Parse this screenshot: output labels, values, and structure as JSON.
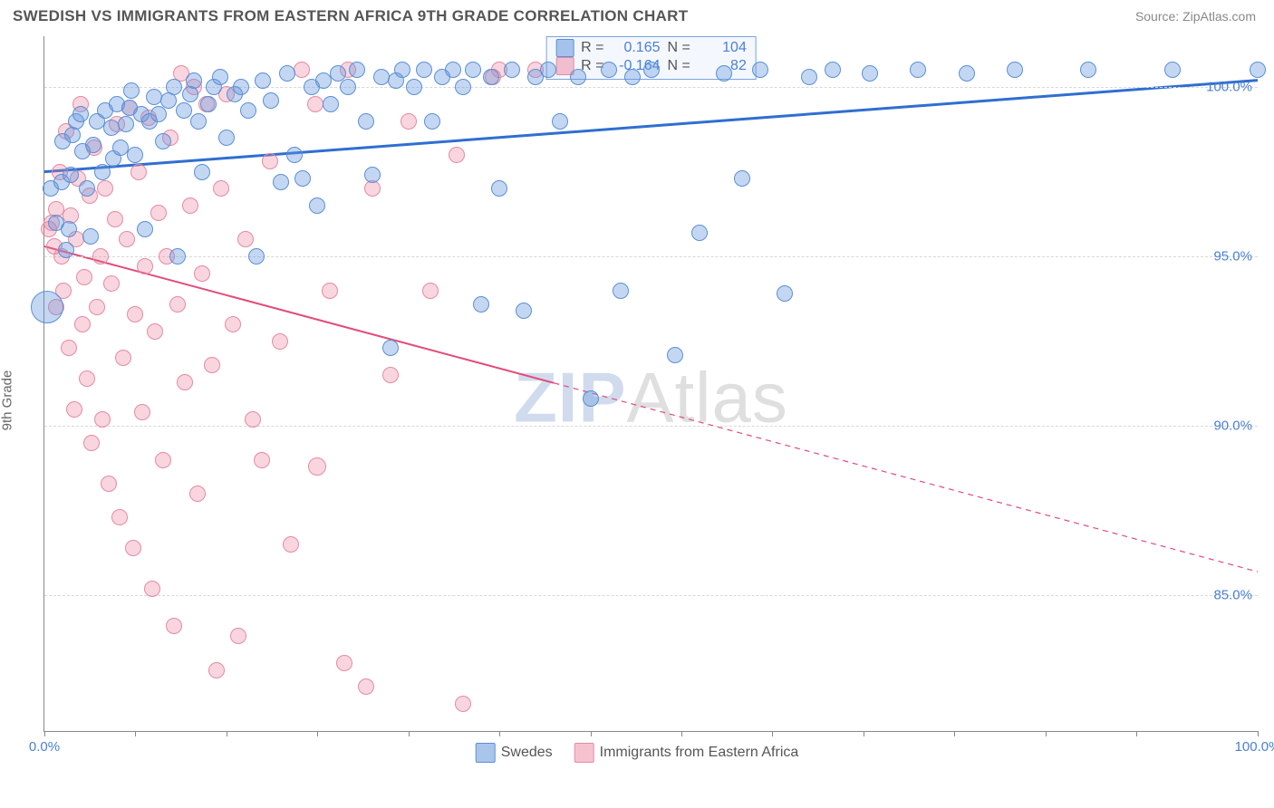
{
  "header": {
    "title": "SWEDISH VS IMMIGRANTS FROM EASTERN AFRICA 9TH GRADE CORRELATION CHART",
    "source": "Source: ZipAtlas.com"
  },
  "ylabel": "9th Grade",
  "watermark": {
    "part1": "ZIP",
    "part2": "Atlas"
  },
  "axes": {
    "xlim": [
      0,
      100
    ],
    "ylim": [
      81,
      101.5
    ],
    "xticks": [
      0,
      7.5,
      15,
      22.5,
      30,
      37.5,
      45,
      52.5,
      60,
      67.5,
      75,
      82.5,
      90,
      100
    ],
    "xtick_labels": {
      "0": "0.0%",
      "100": "100.0%"
    },
    "yticks": [
      85,
      90,
      95,
      100
    ],
    "ytick_labels": {
      "85": "85.0%",
      "90": "90.0%",
      "95": "95.0%",
      "100": "100.0%"
    },
    "grid_color": "#d8d8d8",
    "axis_color": "#888888",
    "tick_label_color": "#4a7fd6"
  },
  "series": {
    "swedes": {
      "label": "Swedes",
      "color_fill": "rgba(100,150,220,0.38)",
      "color_stroke": "#5b8fd6",
      "trend_color": "#2f6fd0",
      "trend_width": 3,
      "trend": {
        "x1": 0,
        "y1": 97.5,
        "x2": 100,
        "y2": 100.2,
        "dash_after_x": null
      },
      "stats": {
        "R": "0.165",
        "N": "104"
      },
      "points": [
        [
          0.5,
          97.0,
          9
        ],
        [
          0.2,
          93.5,
          18
        ],
        [
          1.0,
          96.0,
          9
        ],
        [
          1.4,
          97.2,
          9
        ],
        [
          1.5,
          98.4,
          9
        ],
        [
          1.8,
          95.2,
          9
        ],
        [
          2.0,
          95.8,
          9
        ],
        [
          2.2,
          97.4,
          9
        ],
        [
          2.3,
          98.6,
          9
        ],
        [
          2.6,
          99.0,
          9
        ],
        [
          3.0,
          99.2,
          9
        ],
        [
          3.1,
          98.1,
          9
        ],
        [
          3.5,
          97.0,
          9
        ],
        [
          3.8,
          95.6,
          9
        ],
        [
          4.0,
          98.3,
          9
        ],
        [
          4.3,
          99.0,
          9
        ],
        [
          4.8,
          97.5,
          9
        ],
        [
          5.0,
          99.3,
          9
        ],
        [
          5.5,
          98.8,
          9
        ],
        [
          5.7,
          97.9,
          9
        ],
        [
          6.0,
          99.5,
          9
        ],
        [
          6.3,
          98.2,
          9
        ],
        [
          6.7,
          98.9,
          9
        ],
        [
          7.0,
          99.4,
          9
        ],
        [
          7.2,
          99.9,
          9
        ],
        [
          7.5,
          98.0,
          9
        ],
        [
          8.0,
          99.2,
          9
        ],
        [
          8.3,
          95.8,
          9
        ],
        [
          8.7,
          99.0,
          9
        ],
        [
          9.0,
          99.7,
          9
        ],
        [
          9.4,
          99.2,
          9
        ],
        [
          9.8,
          98.4,
          9
        ],
        [
          10.2,
          99.6,
          9
        ],
        [
          10.7,
          100.0,
          9
        ],
        [
          11.0,
          95.0,
          9
        ],
        [
          11.5,
          99.3,
          9
        ],
        [
          12.0,
          99.8,
          9
        ],
        [
          12.3,
          100.2,
          9
        ],
        [
          12.7,
          99.0,
          9
        ],
        [
          13.0,
          97.5,
          9
        ],
        [
          13.5,
          99.5,
          9
        ],
        [
          14.0,
          100.0,
          9
        ],
        [
          14.5,
          100.3,
          9
        ],
        [
          15.0,
          98.5,
          9
        ],
        [
          15.7,
          99.8,
          9
        ],
        [
          16.2,
          100.0,
          9
        ],
        [
          16.8,
          99.3,
          9
        ],
        [
          17.5,
          95.0,
          9
        ],
        [
          18.0,
          100.2,
          9
        ],
        [
          18.7,
          99.6,
          9
        ],
        [
          19.5,
          97.2,
          9
        ],
        [
          20.0,
          100.4,
          9
        ],
        [
          20.6,
          98.0,
          9
        ],
        [
          21.3,
          97.3,
          9
        ],
        [
          22.0,
          100.0,
          9
        ],
        [
          22.5,
          96.5,
          9
        ],
        [
          23.0,
          100.2,
          9
        ],
        [
          23.6,
          99.5,
          9
        ],
        [
          24.2,
          100.4,
          9
        ],
        [
          25.0,
          100.0,
          9
        ],
        [
          25.8,
          100.5,
          9
        ],
        [
          26.5,
          99.0,
          9
        ],
        [
          27.0,
          97.4,
          9
        ],
        [
          27.8,
          100.3,
          9
        ],
        [
          28.5,
          92.3,
          9
        ],
        [
          29.0,
          100.2,
          9
        ],
        [
          29.5,
          100.5,
          9
        ],
        [
          30.5,
          100.0,
          9
        ],
        [
          31.3,
          100.5,
          9
        ],
        [
          32.0,
          99.0,
          9
        ],
        [
          32.8,
          100.3,
          9
        ],
        [
          33.7,
          100.5,
          9
        ],
        [
          34.5,
          100.0,
          9
        ],
        [
          35.3,
          100.5,
          9
        ],
        [
          36.0,
          93.6,
          9
        ],
        [
          36.8,
          100.3,
          9
        ],
        [
          37.5,
          97.0,
          9
        ],
        [
          38.5,
          100.5,
          9
        ],
        [
          39.5,
          93.4,
          9
        ],
        [
          40.5,
          100.3,
          9
        ],
        [
          41.5,
          100.5,
          9
        ],
        [
          42.5,
          99.0,
          9
        ],
        [
          44.0,
          100.3,
          9
        ],
        [
          45.0,
          90.8,
          9
        ],
        [
          46.5,
          100.5,
          9
        ],
        [
          47.5,
          94.0,
          9
        ],
        [
          48.5,
          100.3,
          9
        ],
        [
          50.0,
          100.5,
          9
        ],
        [
          52.0,
          92.1,
          9
        ],
        [
          54.0,
          95.7,
          9
        ],
        [
          56.0,
          100.4,
          9
        ],
        [
          57.5,
          97.3,
          9
        ],
        [
          59.0,
          100.5,
          9
        ],
        [
          61.0,
          93.9,
          9
        ],
        [
          63.0,
          100.3,
          9
        ],
        [
          65.0,
          100.5,
          9
        ],
        [
          68.0,
          100.4,
          9
        ],
        [
          72.0,
          100.5,
          9
        ],
        [
          76.0,
          100.4,
          9
        ],
        [
          80.0,
          100.5,
          9
        ],
        [
          86.0,
          100.5,
          9
        ],
        [
          93.0,
          100.5,
          9
        ],
        [
          100.0,
          100.5,
          9
        ]
      ]
    },
    "immigrants": {
      "label": "Immigrants from Eastern Africa",
      "color_fill": "rgba(235,120,150,0.30)",
      "color_stroke": "#e58aa3",
      "trend_color": "#e34b77",
      "trend_width": 2,
      "trend": {
        "x1": 0,
        "y1": 95.3,
        "x2": 100,
        "y2": 85.7,
        "dash_after_x": 42
      },
      "stats": {
        "R": "-0.164",
        "N": "82"
      },
      "points": [
        [
          0.4,
          95.8,
          9
        ],
        [
          0.6,
          96.0,
          9
        ],
        [
          0.8,
          95.3,
          9
        ],
        [
          1.0,
          96.4,
          9
        ],
        [
          1.0,
          93.5,
          9
        ],
        [
          1.3,
          97.5,
          9
        ],
        [
          1.4,
          95.0,
          9
        ],
        [
          1.6,
          94.0,
          9
        ],
        [
          1.8,
          98.7,
          9
        ],
        [
          2.0,
          92.3,
          9
        ],
        [
          2.2,
          96.2,
          9
        ],
        [
          2.5,
          90.5,
          9
        ],
        [
          2.6,
          95.5,
          9
        ],
        [
          2.8,
          97.3,
          9
        ],
        [
          3.0,
          99.5,
          9
        ],
        [
          3.1,
          93.0,
          9
        ],
        [
          3.3,
          94.4,
          9
        ],
        [
          3.5,
          91.4,
          9
        ],
        [
          3.7,
          96.8,
          9
        ],
        [
          3.9,
          89.5,
          9
        ],
        [
          4.1,
          98.2,
          9
        ],
        [
          4.3,
          93.5,
          9
        ],
        [
          4.6,
          95.0,
          9
        ],
        [
          4.8,
          90.2,
          9
        ],
        [
          5.0,
          97.0,
          9
        ],
        [
          5.3,
          88.3,
          9
        ],
        [
          5.5,
          94.2,
          9
        ],
        [
          5.8,
          96.1,
          9
        ],
        [
          6.0,
          98.9,
          9
        ],
        [
          6.2,
          87.3,
          9
        ],
        [
          6.5,
          92.0,
          9
        ],
        [
          6.8,
          95.5,
          9
        ],
        [
          7.0,
          99.4,
          9
        ],
        [
          7.3,
          86.4,
          9
        ],
        [
          7.5,
          93.3,
          9
        ],
        [
          7.8,
          97.5,
          9
        ],
        [
          8.1,
          90.4,
          9
        ],
        [
          8.3,
          94.7,
          9
        ],
        [
          8.6,
          99.1,
          9
        ],
        [
          8.9,
          85.2,
          9
        ],
        [
          9.1,
          92.8,
          9
        ],
        [
          9.4,
          96.3,
          9
        ],
        [
          9.8,
          89.0,
          9
        ],
        [
          10.1,
          95.0,
          9
        ],
        [
          10.4,
          98.5,
          9
        ],
        [
          10.7,
          84.1,
          9
        ],
        [
          11.0,
          93.6,
          9
        ],
        [
          11.3,
          100.4,
          9
        ],
        [
          11.6,
          91.3,
          9
        ],
        [
          12.0,
          96.5,
          9
        ],
        [
          12.3,
          100.0,
          9
        ],
        [
          12.6,
          88.0,
          9
        ],
        [
          13.0,
          94.5,
          9
        ],
        [
          13.4,
          99.5,
          9
        ],
        [
          13.8,
          91.8,
          9
        ],
        [
          14.2,
          82.8,
          9
        ],
        [
          14.6,
          97.0,
          9
        ],
        [
          15.0,
          99.8,
          9
        ],
        [
          15.5,
          93.0,
          9
        ],
        [
          16.0,
          83.8,
          9
        ],
        [
          16.6,
          95.5,
          9
        ],
        [
          17.2,
          90.2,
          9
        ],
        [
          17.9,
          89.0,
          9
        ],
        [
          18.6,
          97.8,
          9
        ],
        [
          19.4,
          92.5,
          9
        ],
        [
          20.3,
          86.5,
          9
        ],
        [
          21.2,
          100.5,
          9
        ],
        [
          22.3,
          99.5,
          9
        ],
        [
          22.5,
          88.8,
          10
        ],
        [
          23.5,
          94.0,
          9
        ],
        [
          24.7,
          83.0,
          9
        ],
        [
          25.0,
          100.5,
          9
        ],
        [
          27.0,
          97.0,
          9
        ],
        [
          26.5,
          82.3,
          9
        ],
        [
          28.5,
          91.5,
          9
        ],
        [
          30.0,
          99.0,
          9
        ],
        [
          31.8,
          94.0,
          9
        ],
        [
          34.0,
          98.0,
          9
        ],
        [
          34.5,
          81.8,
          9
        ],
        [
          37.0,
          100.3,
          9
        ],
        [
          37.5,
          100.5,
          9
        ],
        [
          40.5,
          100.5,
          9
        ]
      ]
    }
  },
  "stats_box": {
    "rows": [
      {
        "swatch_fill": "rgba(100,150,220,0.55)",
        "swatch_stroke": "#5b8fd6",
        "R_label": "R =",
        "R": "0.165",
        "N_label": "N =",
        "N": "104"
      },
      {
        "swatch_fill": "rgba(235,120,150,0.45)",
        "swatch_stroke": "#e58aa3",
        "R_label": "R =",
        "R": "-0.164",
        "N_label": "N =",
        "N": "82"
      }
    ]
  },
  "legend": [
    {
      "swatch_fill": "rgba(100,150,220,0.55)",
      "swatch_stroke": "#5b8fd6",
      "label": "Swedes"
    },
    {
      "swatch_fill": "rgba(235,120,150,0.45)",
      "swatch_stroke": "#e58aa3",
      "label": "Immigrants from Eastern Africa"
    }
  ]
}
